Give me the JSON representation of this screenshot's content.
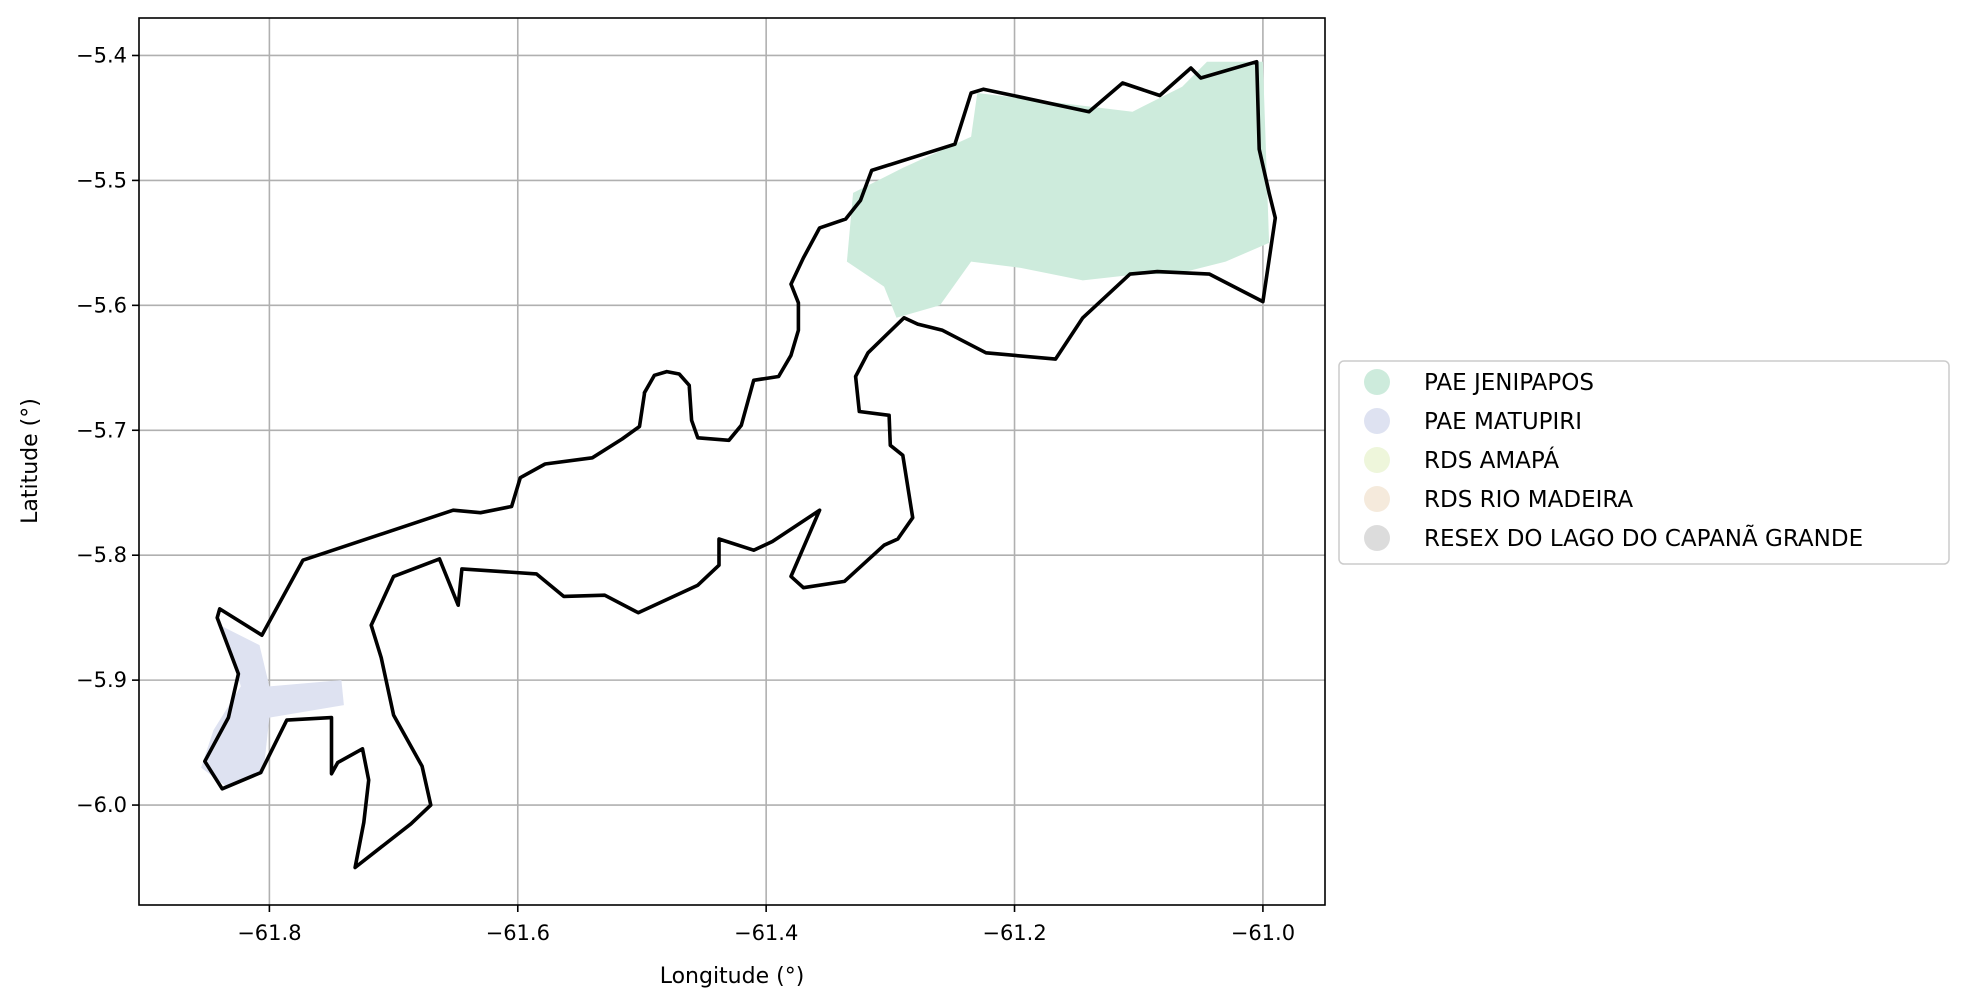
{
  "chart_data": {
    "type": "choropleth-map",
    "xlabel": "Longitude (°)",
    "ylabel": "Latitude (°)",
    "xlim": [
      -61.905,
      -60.95
    ],
    "ylim": [
      -6.08,
      -5.37
    ],
    "x_ticks": [
      -61.8,
      -61.6,
      -61.4,
      -61.2,
      -61.0
    ],
    "x_tick_labels": [
      "−61.8",
      "−61.6",
      "−61.4",
      "−61.2",
      "−61.0"
    ],
    "y_ticks": [
      -5.4,
      -5.5,
      -5.6,
      -5.7,
      -5.8,
      -5.9,
      -6.0
    ],
    "y_tick_labels": [
      "−5.4",
      "−5.5",
      "−5.6",
      "−5.7",
      "−5.8",
      "−5.9",
      "−6.0"
    ],
    "grid": true,
    "legend_position": "center-right-outside",
    "legend": [
      {
        "label": "PAE JENIPAPOS",
        "color": "#cdebdc"
      },
      {
        "label": "PAE MATUPIRI",
        "color": "#dee2f1"
      },
      {
        "label": "RDS AMAPÁ",
        "color": "#eef6db"
      },
      {
        "label": "RDS RIO MADEIRA",
        "color": "#f5eadc"
      },
      {
        "label": "RESEX DO LAGO DO CAPANÃ GRANDE",
        "color": "#dcdcdc"
      }
    ],
    "regions": [
      {
        "name": "PAE JENIPAPOS",
        "fill": "#cdebdc",
        "coords": [
          [
            -61.335,
            -5.565
          ],
          [
            -61.33,
            -5.51
          ],
          [
            -61.29,
            -5.49
          ],
          [
            -61.235,
            -5.465
          ],
          [
            -61.23,
            -5.43
          ],
          [
            -61.105,
            -5.445
          ],
          [
            -61.065,
            -5.425
          ],
          [
            -61.045,
            -5.405
          ],
          [
            -61.0,
            -5.405
          ],
          [
            -60.995,
            -5.55
          ],
          [
            -61.03,
            -5.565
          ],
          [
            -61.07,
            -5.575
          ],
          [
            -61.1,
            -5.575
          ],
          [
            -61.145,
            -5.58
          ],
          [
            -61.195,
            -5.57
          ],
          [
            -61.235,
            -5.565
          ],
          [
            -61.26,
            -5.6
          ],
          [
            -61.295,
            -5.61
          ],
          [
            -61.305,
            -5.585
          ],
          [
            -61.32,
            -5.575
          ]
        ]
      },
      {
        "name": "PAE MATUPIRI",
        "fill": "#dee2f1",
        "coords": [
          [
            -61.842,
            -5.855
          ],
          [
            -61.808,
            -5.872
          ],
          [
            -61.8,
            -5.905
          ],
          [
            -61.742,
            -5.9
          ],
          [
            -61.74,
            -5.92
          ],
          [
            -61.8,
            -5.93
          ],
          [
            -61.805,
            -5.975
          ],
          [
            -61.835,
            -5.985
          ],
          [
            -61.855,
            -5.97
          ],
          [
            -61.845,
            -5.94
          ],
          [
            -61.823,
            -5.905
          ],
          [
            -61.83,
            -5.88
          ]
        ]
      }
    ],
    "boundary": [
      [
        -61.84,
        -5.843
      ],
      [
        -61.806,
        -5.864
      ],
      [
        -61.773,
        -5.804
      ],
      [
        -61.652,
        -5.764
      ],
      [
        -61.63,
        -5.766
      ],
      [
        -61.605,
        -5.761
      ],
      [
        -61.598,
        -5.738
      ],
      [
        -61.578,
        -5.727
      ],
      [
        -61.54,
        -5.722
      ],
      [
        -61.516,
        -5.707
      ],
      [
        -61.502,
        -5.697
      ],
      [
        -61.498,
        -5.671
      ],
      [
        -61.498,
        -5.67
      ],
      [
        -61.49,
        -5.656
      ],
      [
        -61.48,
        -5.653
      ],
      [
        -61.47,
        -5.655
      ],
      [
        -61.462,
        -5.664
      ],
      [
        -61.46,
        -5.692
      ],
      [
        -61.455,
        -5.706
      ],
      [
        -61.43,
        -5.708
      ],
      [
        -61.42,
        -5.696
      ],
      [
        -61.41,
        -5.66
      ],
      [
        -61.39,
        -5.657
      ],
      [
        -61.38,
        -5.64
      ],
      [
        -61.374,
        -5.62
      ],
      [
        -61.374,
        -5.598
      ],
      [
        -61.38,
        -5.583
      ],
      [
        -61.37,
        -5.562
      ],
      [
        -61.357,
        -5.538
      ],
      [
        -61.336,
        -5.531
      ],
      [
        -61.324,
        -5.516
      ],
      [
        -61.315,
        -5.492
      ],
      [
        -61.248,
        -5.471
      ],
      [
        -61.235,
        -5.43
      ],
      [
        -61.225,
        -5.427
      ],
      [
        -61.14,
        -5.445
      ],
      [
        -61.113,
        -5.422
      ],
      [
        -61.083,
        -5.432
      ],
      [
        -61.058,
        -5.41
      ],
      [
        -61.05,
        -5.418
      ],
      [
        -61.005,
        -5.405
      ],
      [
        -61.003,
        -5.475
      ],
      [
        -60.995,
        -5.51
      ],
      [
        -60.99,
        -5.53
      ],
      [
        -61.0,
        -5.597
      ],
      [
        -61.043,
        -5.575
      ],
      [
        -61.085,
        -5.573
      ],
      [
        -61.107,
        -5.575
      ],
      [
        -61.145,
        -5.61
      ],
      [
        -61.167,
        -5.643
      ],
      [
        -61.223,
        -5.638
      ],
      [
        -61.258,
        -5.62
      ],
      [
        -61.278,
        -5.615
      ],
      [
        -61.289,
        -5.61
      ],
      [
        -61.318,
        -5.638
      ],
      [
        -61.328,
        -5.657
      ],
      [
        -61.325,
        -5.685
      ],
      [
        -61.301,
        -5.688
      ],
      [
        -61.3,
        -5.712
      ],
      [
        -61.29,
        -5.72
      ],
      [
        -61.282,
        -5.77
      ],
      [
        -61.294,
        -5.787
      ],
      [
        -61.305,
        -5.792
      ],
      [
        -61.337,
        -5.821
      ],
      [
        -61.37,
        -5.826
      ],
      [
        -61.38,
        -5.817
      ],
      [
        -61.357,
        -5.764
      ],
      [
        -61.395,
        -5.789
      ],
      [
        -61.41,
        -5.796
      ],
      [
        -61.438,
        -5.787
      ],
      [
        -61.438,
        -5.808
      ],
      [
        -61.455,
        -5.824
      ],
      [
        -61.503,
        -5.846
      ],
      [
        -61.53,
        -5.832
      ],
      [
        -61.563,
        -5.833
      ],
      [
        -61.585,
        -5.815
      ],
      [
        -61.645,
        -5.811
      ],
      [
        -61.648,
        -5.84
      ],
      [
        -61.663,
        -5.803
      ],
      [
        -61.7,
        -5.817
      ],
      [
        -61.718,
        -5.856
      ],
      [
        -61.71,
        -5.882
      ],
      [
        -61.7,
        -5.928
      ],
      [
        -61.677,
        -5.969
      ],
      [
        -61.67,
        -6.0
      ],
      [
        -61.686,
        -6.015
      ],
      [
        -61.731,
        -6.05
      ],
      [
        -61.724,
        -6.014
      ],
      [
        -61.72,
        -5.98
      ],
      [
        -61.725,
        -5.955
      ],
      [
        -61.745,
        -5.966
      ],
      [
        -61.75,
        -5.975
      ],
      [
        -61.75,
        -5.93
      ],
      [
        -61.786,
        -5.932
      ],
      [
        -61.807,
        -5.974
      ],
      [
        -61.838,
        -5.987
      ],
      [
        -61.852,
        -5.965
      ],
      [
        -61.833,
        -5.93
      ],
      [
        -61.825,
        -5.895
      ],
      [
        -61.842,
        -5.85
      ]
    ]
  }
}
